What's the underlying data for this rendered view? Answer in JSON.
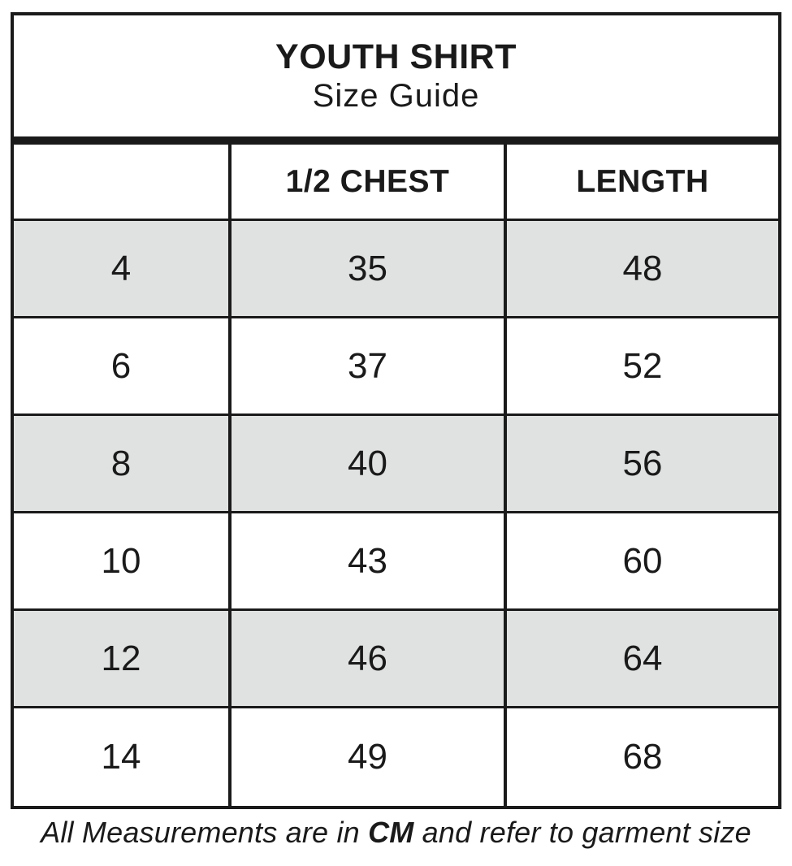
{
  "title": {
    "line1": "YOUTH SHIRT",
    "line2": "Size Guide"
  },
  "table": {
    "columns": [
      "",
      "1/2 CHEST",
      "LENGTH"
    ],
    "rows": [
      {
        "size": "4",
        "half_chest": "35",
        "length": "48"
      },
      {
        "size": "6",
        "half_chest": "37",
        "length": "52"
      },
      {
        "size": "8",
        "half_chest": "40",
        "length": "56"
      },
      {
        "size": "10",
        "half_chest": "43",
        "length": "60"
      },
      {
        "size": "12",
        "half_chest": "46",
        "length": "64"
      },
      {
        "size": "14",
        "half_chest": "49",
        "length": "68"
      }
    ]
  },
  "footer": {
    "prefix": "All Measurements are in ",
    "unit": "CM",
    "suffix": " and refer to garment size"
  },
  "colors": {
    "border": "#1a1a1a",
    "row_alt": "#e0e1e1",
    "text": "#1a1a1a",
    "background": "#ffffff"
  }
}
